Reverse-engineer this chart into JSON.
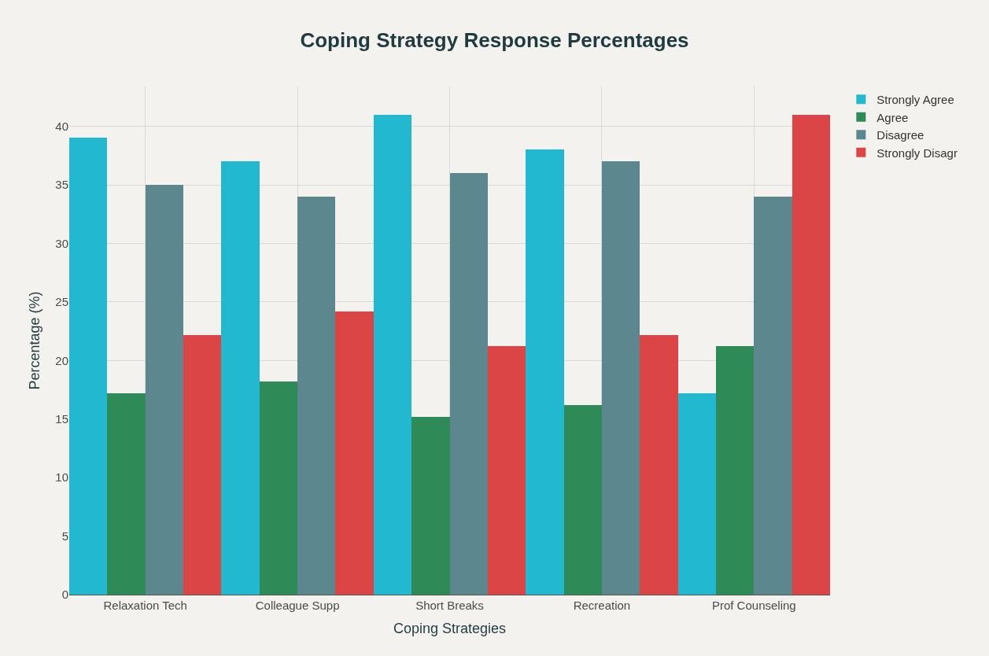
{
  "chart_data": {
    "type": "bar",
    "title": "Coping Strategy Response Percentages",
    "xlabel": "Coping Strategies",
    "ylabel": "Percentage (%)",
    "categories": [
      "Relaxation Tech",
      "Colleague Supp",
      "Short Breaks",
      "Recreation",
      "Prof Counseling"
    ],
    "series": [
      {
        "name": "Strongly Agree",
        "color": "#22b8cf",
        "values": [
          39,
          37,
          41,
          38,
          17.2
        ]
      },
      {
        "name": "Agree",
        "color": "#2e8b57",
        "values": [
          17.2,
          18.2,
          15.2,
          16.2,
          21.2
        ]
      },
      {
        "name": "Disagree",
        "color": "#5d878f",
        "values": [
          35,
          34,
          36,
          37,
          34
        ]
      },
      {
        "name": "Strongly Disagr",
        "color": "#db4545",
        "values": [
          22.2,
          24.2,
          21.2,
          22.2,
          41
        ]
      }
    ],
    "ylim": [
      0,
      43.4
    ],
    "yticks": [
      0,
      5,
      10,
      15,
      20,
      25,
      30,
      35,
      40
    ],
    "grid": true,
    "legend": "top right"
  }
}
